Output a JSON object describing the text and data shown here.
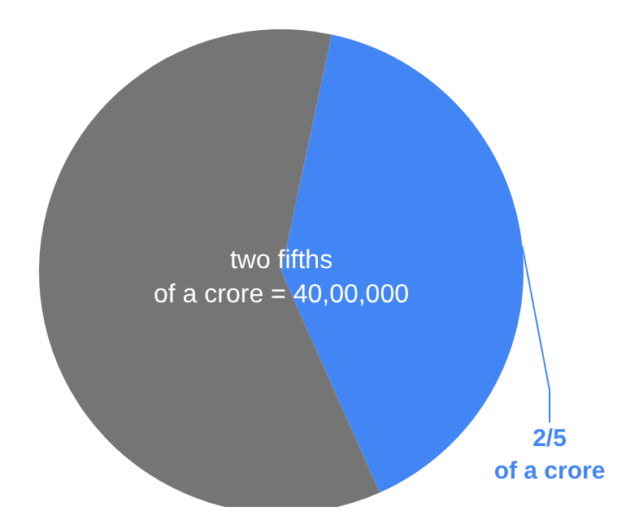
{
  "chart_data": {
    "type": "pie",
    "categories": [
      "2/5\nof a crore",
      null
    ],
    "values": [
      40,
      60
    ],
    "colors": [
      "#4285f4",
      "#757575"
    ],
    "annotations": [
      "two fifths\nof a crore = 40,00,000"
    ]
  }
}
